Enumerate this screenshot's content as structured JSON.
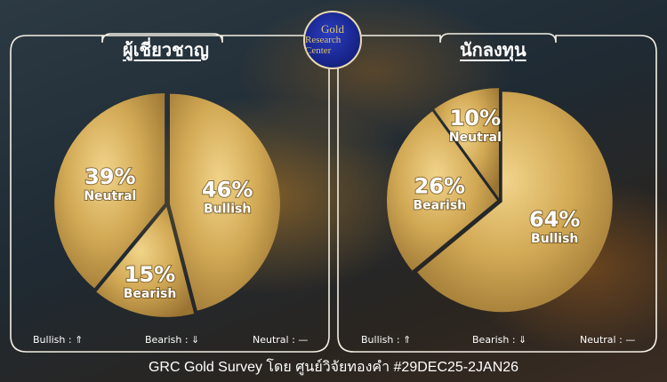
{
  "logo": {
    "line1": "Gold",
    "line2": "Research Center"
  },
  "panels": [
    {
      "title": "ผู้เชี่ยวชาญ"
    },
    {
      "title": "นักลงทุน"
    }
  ],
  "legend": {
    "bullish": "Bullish :",
    "bearish": "Bearish :",
    "neutral": "Neutral :"
  },
  "footer": "GRC Gold Survey โดย ศูนย์วิจัยทองคำ #29DEC25-2JAN26",
  "colors": {
    "gold_light": "#e9c777",
    "gold_dark": "#9a7433",
    "frame": "#f4efe4"
  },
  "chart_data": [
    {
      "type": "pie",
      "title": "ผู้เชี่ยวชาญ",
      "slices": [
        {
          "label": "Bullish",
          "value": 46
        },
        {
          "label": "Bearish",
          "value": 15
        },
        {
          "label": "Neutral",
          "value": 39
        }
      ]
    },
    {
      "type": "pie",
      "title": "นักลงทุน",
      "slices": [
        {
          "label": "Bullish",
          "value": 64
        },
        {
          "label": "Bearish",
          "value": 26
        },
        {
          "label": "Neutral",
          "value": 10
        }
      ]
    }
  ]
}
